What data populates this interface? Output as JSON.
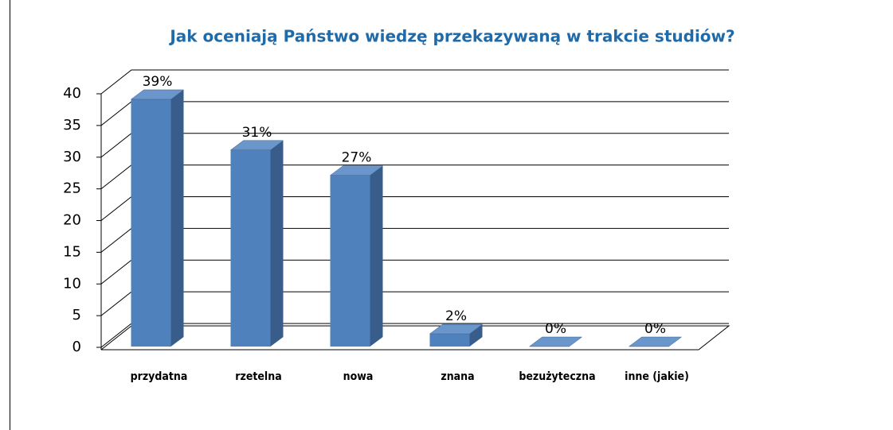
{
  "chart_data": {
    "type": "bar3d",
    "title": "Jak oceniają Państwo wiedzę przekazywaną w trakcie studiów?",
    "categories": [
      "przydatna",
      "rzetelna",
      "nowa",
      "znana",
      "bezużyteczna",
      "inne (jakie)"
    ],
    "values": [
      39,
      31,
      27,
      2,
      0,
      0
    ],
    "value_labels": [
      "39%",
      "31%",
      "27%",
      "2%",
      "0%",
      "0%"
    ],
    "color": "#4f81bd",
    "ylim": [
      0,
      40
    ],
    "yticks": [
      0,
      5,
      10,
      15,
      20,
      25,
      30,
      35,
      40
    ],
    "grid": true
  }
}
